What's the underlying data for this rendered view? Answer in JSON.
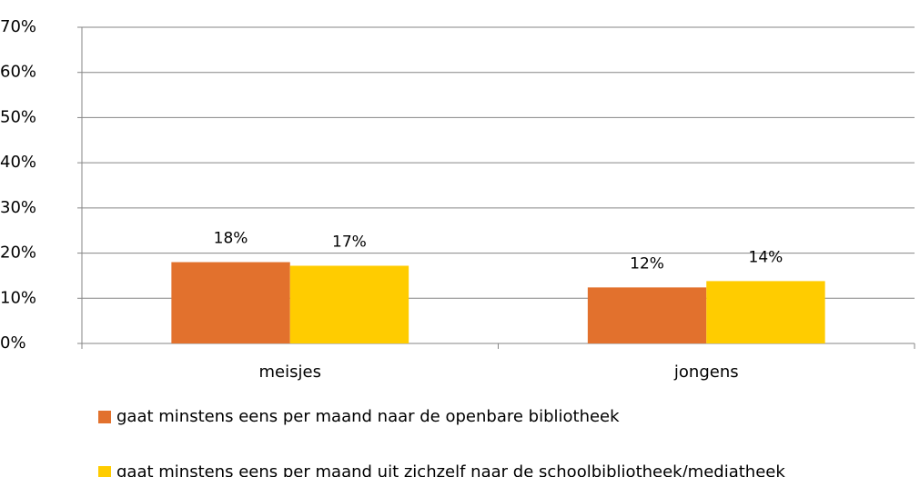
{
  "chart_data": {
    "type": "bar",
    "categories": [
      "meisjes",
      "jongens"
    ],
    "series": [
      {
        "name": "gaat minstens eens per maand naar de openbare bibliotheek",
        "color": "#e2712d",
        "values": [
          18,
          12.4
        ],
        "value_labels": [
          "18%",
          "12%"
        ]
      },
      {
        "name": "gaat minstens eens per maand uit zichzelf naar de schoolbibliotheek/mediatheek",
        "color": "#ffcc00",
        "values": [
          17.2,
          13.8
        ],
        "value_labels": [
          "17%",
          "14%"
        ]
      }
    ],
    "ylim": [
      0,
      70
    ],
    "yticks": [
      {
        "value": 0,
        "label": "0%"
      },
      {
        "value": 10,
        "label": "10%"
      },
      {
        "value": 20,
        "label": "20%"
      },
      {
        "value": 30,
        "label": "30%"
      },
      {
        "value": 40,
        "label": "40%"
      },
      {
        "value": 50,
        "label": "50%"
      },
      {
        "value": 60,
        "label": "60%"
      },
      {
        "value": 70,
        "label": "70%"
      }
    ],
    "grid": true,
    "legend": "bottom"
  }
}
